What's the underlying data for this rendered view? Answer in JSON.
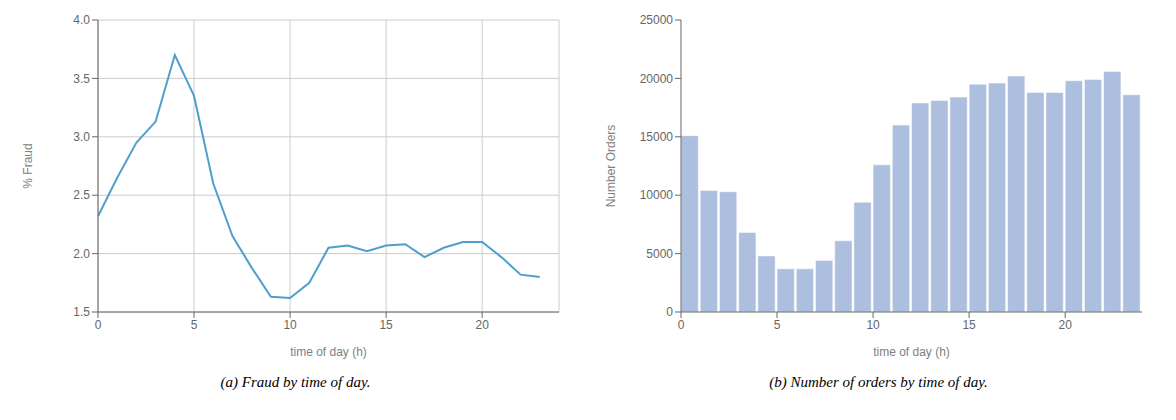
{
  "chart_data": [
    {
      "type": "line",
      "title": "(a) Fraud by time of day.",
      "x": [
        0,
        1,
        2,
        3,
        4,
        5,
        6,
        7,
        8,
        9,
        10,
        11,
        12,
        13,
        14,
        15,
        16,
        17,
        18,
        19,
        20,
        21,
        22,
        23
      ],
      "values": [
        2.32,
        2.65,
        2.95,
        3.13,
        3.7,
        3.35,
        2.6,
        2.15,
        1.88,
        1.63,
        1.62,
        1.75,
        2.05,
        2.07,
        2.02,
        2.07,
        2.08,
        1.97,
        2.05,
        2.1,
        2.1,
        1.97,
        1.82,
        1.8
      ],
      "color": "#4f9fcc",
      "xlabel": "time of day (h)",
      "ylabel": "% Fraud",
      "xlim": [
        0,
        24
      ],
      "xticks": [
        0,
        5,
        10,
        15,
        20
      ],
      "ylim": [
        1.5,
        4.0
      ],
      "yticks": [
        1.5,
        {
          "value": 2.0,
          "label": "2.0"
        },
        2.5,
        {
          "value": 3.0,
          "label": "3.0"
        },
        3.5,
        {
          "value": 4.0,
          "label": "4.0"
        }
      ],
      "grid": true
    },
    {
      "type": "bar",
      "title": "(b) Number of orders by time of day.",
      "x": [
        0,
        1,
        2,
        3,
        4,
        5,
        6,
        7,
        8,
        9,
        10,
        11,
        12,
        13,
        14,
        15,
        16,
        17,
        18,
        19,
        20,
        21,
        22,
        23
      ],
      "values": [
        15100,
        10400,
        10300,
        6800,
        4800,
        3700,
        3700,
        4400,
        6100,
        9400,
        12600,
        16000,
        17900,
        18100,
        18400,
        19500,
        19600,
        20200,
        18800,
        18800,
        19800,
        19900,
        20600,
        18600
      ],
      "color": "#adbfdf",
      "xlabel": "time of day (h)",
      "ylabel": "Number Orders",
      "xlim": [
        0,
        24
      ],
      "xticks": [
        0,
        5,
        10,
        15,
        20
      ],
      "ylim": [
        0,
        25000
      ],
      "yticks": [
        0,
        5000,
        10000,
        15000,
        20000,
        25000
      ],
      "grid": false
    }
  ]
}
